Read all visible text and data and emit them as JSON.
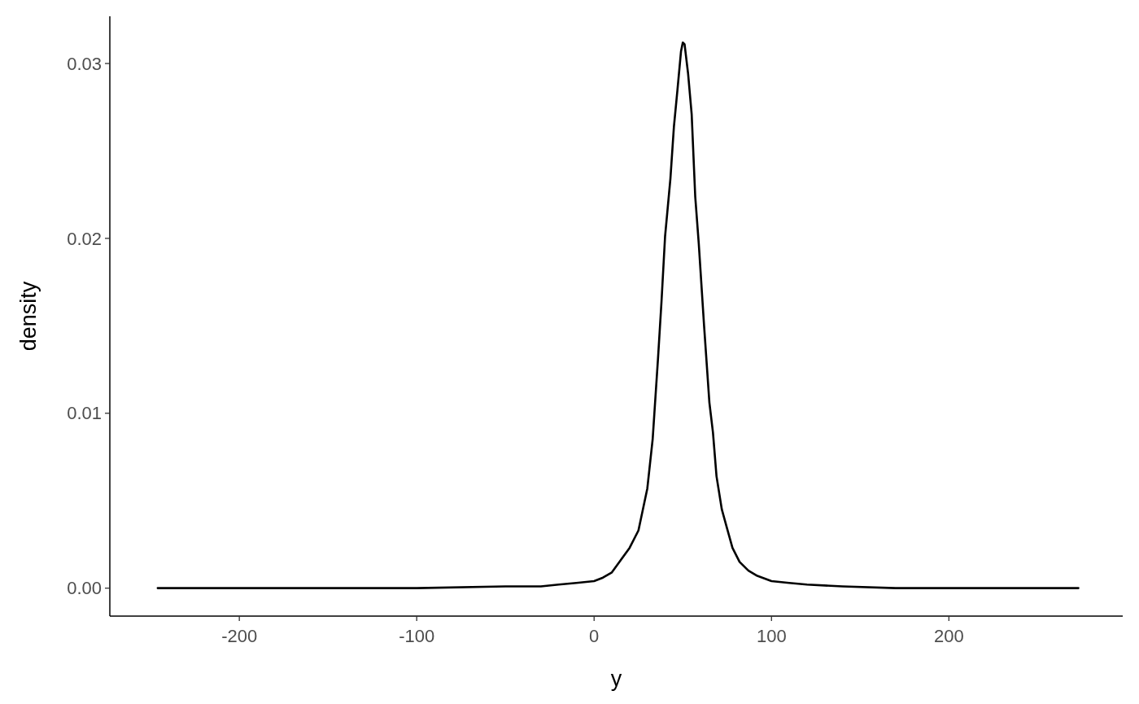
{
  "chart_data": {
    "type": "line",
    "xlabel": "y",
    "ylabel": "density",
    "xlim": [
      -273,
      298
    ],
    "ylim": [
      -0.0016,
      0.0327
    ],
    "xticks": [
      -200,
      -100,
      0,
      100,
      200
    ],
    "yticks": [
      {
        "value": 0,
        "label": "0.00"
      },
      {
        "value": 0.01,
        "label": "0.01"
      },
      {
        "value": 0.02,
        "label": "0.02"
      },
      {
        "value": 0.03,
        "label": "0.03"
      }
    ],
    "grid": false,
    "marker": "none",
    "line_style": "solid",
    "series": [
      {
        "color": "#000000",
        "x": [
          -246,
          -150,
          -100,
          -50,
          -30,
          -20,
          -10,
          0,
          5,
          10,
          15,
          20,
          25,
          30,
          33,
          36,
          38,
          40,
          43,
          45,
          47,
          49,
          50,
          51,
          53,
          55,
          57,
          59,
          62,
          65,
          67,
          69,
          72,
          75,
          78,
          82,
          87,
          92,
          100,
          110,
          120,
          140,
          170,
          273
        ],
        "values": [
          0,
          0,
          0,
          0.0001,
          0.0001,
          0.0002,
          0.0003,
          0.0004,
          0.0006,
          0.0009,
          0.0016,
          0.0023,
          0.0033,
          0.0057,
          0.0085,
          0.0131,
          0.0164,
          0.0201,
          0.0234,
          0.0264,
          0.0285,
          0.0307,
          0.0312,
          0.0311,
          0.0294,
          0.0271,
          0.0224,
          0.0197,
          0.015,
          0.0106,
          0.0089,
          0.0064,
          0.0045,
          0.0034,
          0.0023,
          0.0015,
          0.001,
          0.0007,
          0.0004,
          0.0003,
          0.0002,
          0.0001,
          0,
          0
        ]
      }
    ]
  }
}
